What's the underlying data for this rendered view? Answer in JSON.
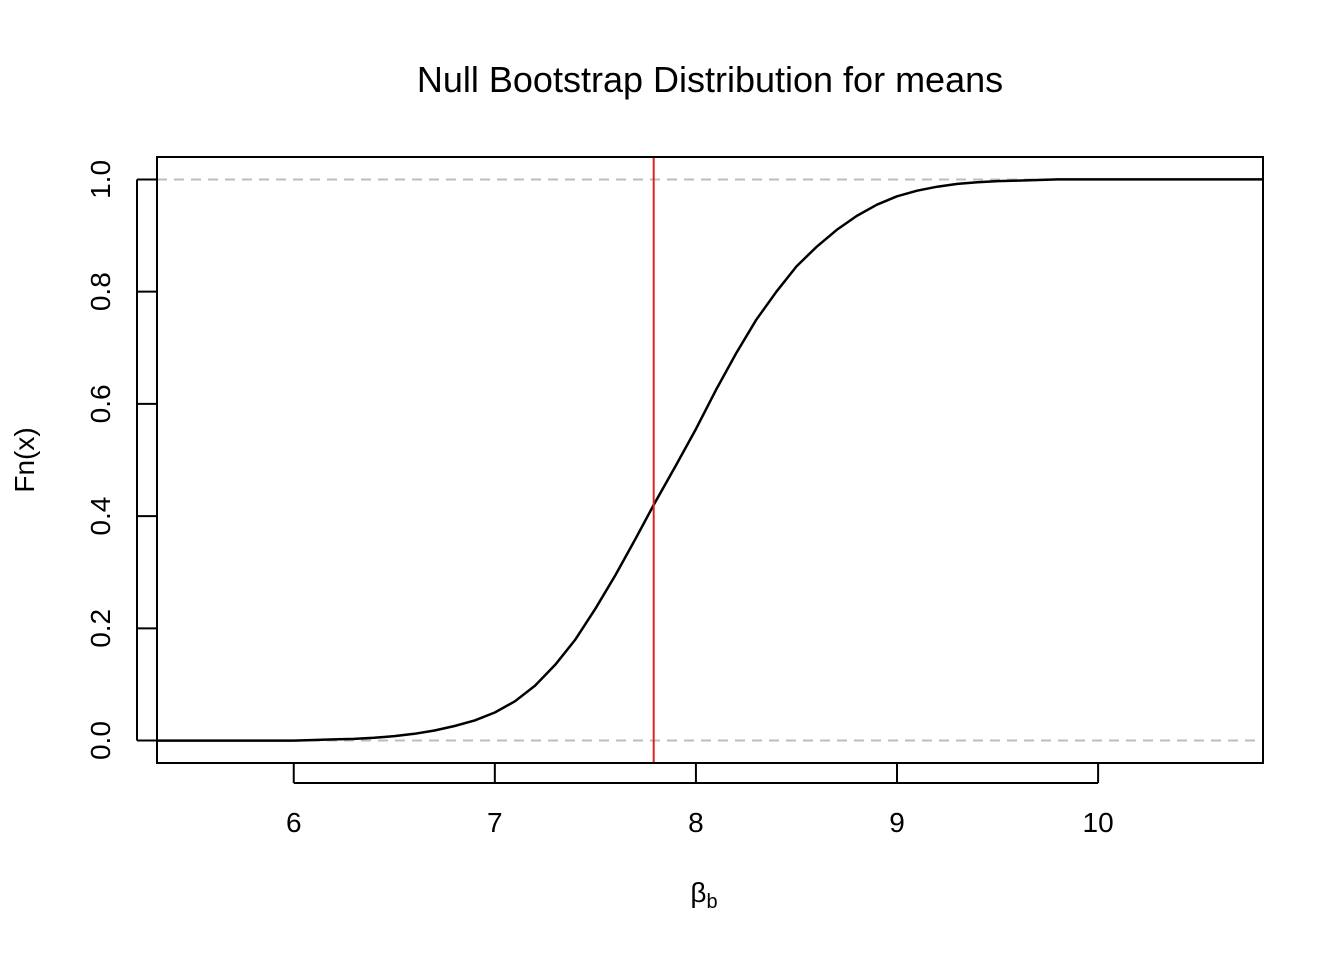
{
  "chart_data": {
    "type": "line",
    "title": "Null Bootstrap Distribution for means",
    "xlabel": {
      "base": "β",
      "subscript": "b"
    },
    "ylabel": "Fn(x)",
    "xlim": [
      5.32,
      10.82
    ],
    "ylim": [
      -0.04,
      1.04
    ],
    "x_ticks": [
      {
        "value": 6,
        "label": "6"
      },
      {
        "value": 7,
        "label": "7"
      },
      {
        "value": 8,
        "label": "8"
      },
      {
        "value": 9,
        "label": "9"
      },
      {
        "value": 10,
        "label": "10"
      }
    ],
    "y_ticks": [
      {
        "value": 0.0,
        "label": "0.0"
      },
      {
        "value": 0.2,
        "label": "0.2"
      },
      {
        "value": 0.4,
        "label": "0.4"
      },
      {
        "value": 0.6,
        "label": "0.6"
      },
      {
        "value": 0.8,
        "label": "0.8"
      },
      {
        "value": 1.0,
        "label": "1.0"
      }
    ],
    "reference_lines_horizontal": [
      0.0,
      1.0
    ],
    "reference_line_vertical": {
      "x": 7.79,
      "color": "#dd2222"
    },
    "series": [
      {
        "color": "#000000",
        "x": [
          5.32,
          6.0,
          6.1,
          6.2,
          6.3,
          6.4,
          6.5,
          6.6,
          6.7,
          6.8,
          6.9,
          7.0,
          7.1,
          7.2,
          7.3,
          7.4,
          7.5,
          7.6,
          7.7,
          7.79,
          7.9,
          8.0,
          8.1,
          8.2,
          8.3,
          8.4,
          8.5,
          8.6,
          8.7,
          8.8,
          8.9,
          9.0,
          9.1,
          9.2,
          9.3,
          9.4,
          9.5,
          9.6,
          9.7,
          9.8,
          10.0,
          10.82
        ],
        "y": [
          0.0,
          0.0,
          0.001,
          0.002,
          0.003,
          0.005,
          0.008,
          0.012,
          0.018,
          0.026,
          0.036,
          0.05,
          0.07,
          0.098,
          0.135,
          0.18,
          0.235,
          0.295,
          0.36,
          0.42,
          0.49,
          0.555,
          0.625,
          0.69,
          0.75,
          0.8,
          0.845,
          0.88,
          0.91,
          0.935,
          0.955,
          0.97,
          0.98,
          0.987,
          0.992,
          0.995,
          0.997,
          0.998,
          0.999,
          1.0,
          1.0,
          1.0
        ]
      }
    ],
    "grid": false,
    "colors": {
      "curve": "#000000",
      "reference_dashed": "#bdbdbd",
      "vertical_marker": "#dd2222"
    }
  }
}
